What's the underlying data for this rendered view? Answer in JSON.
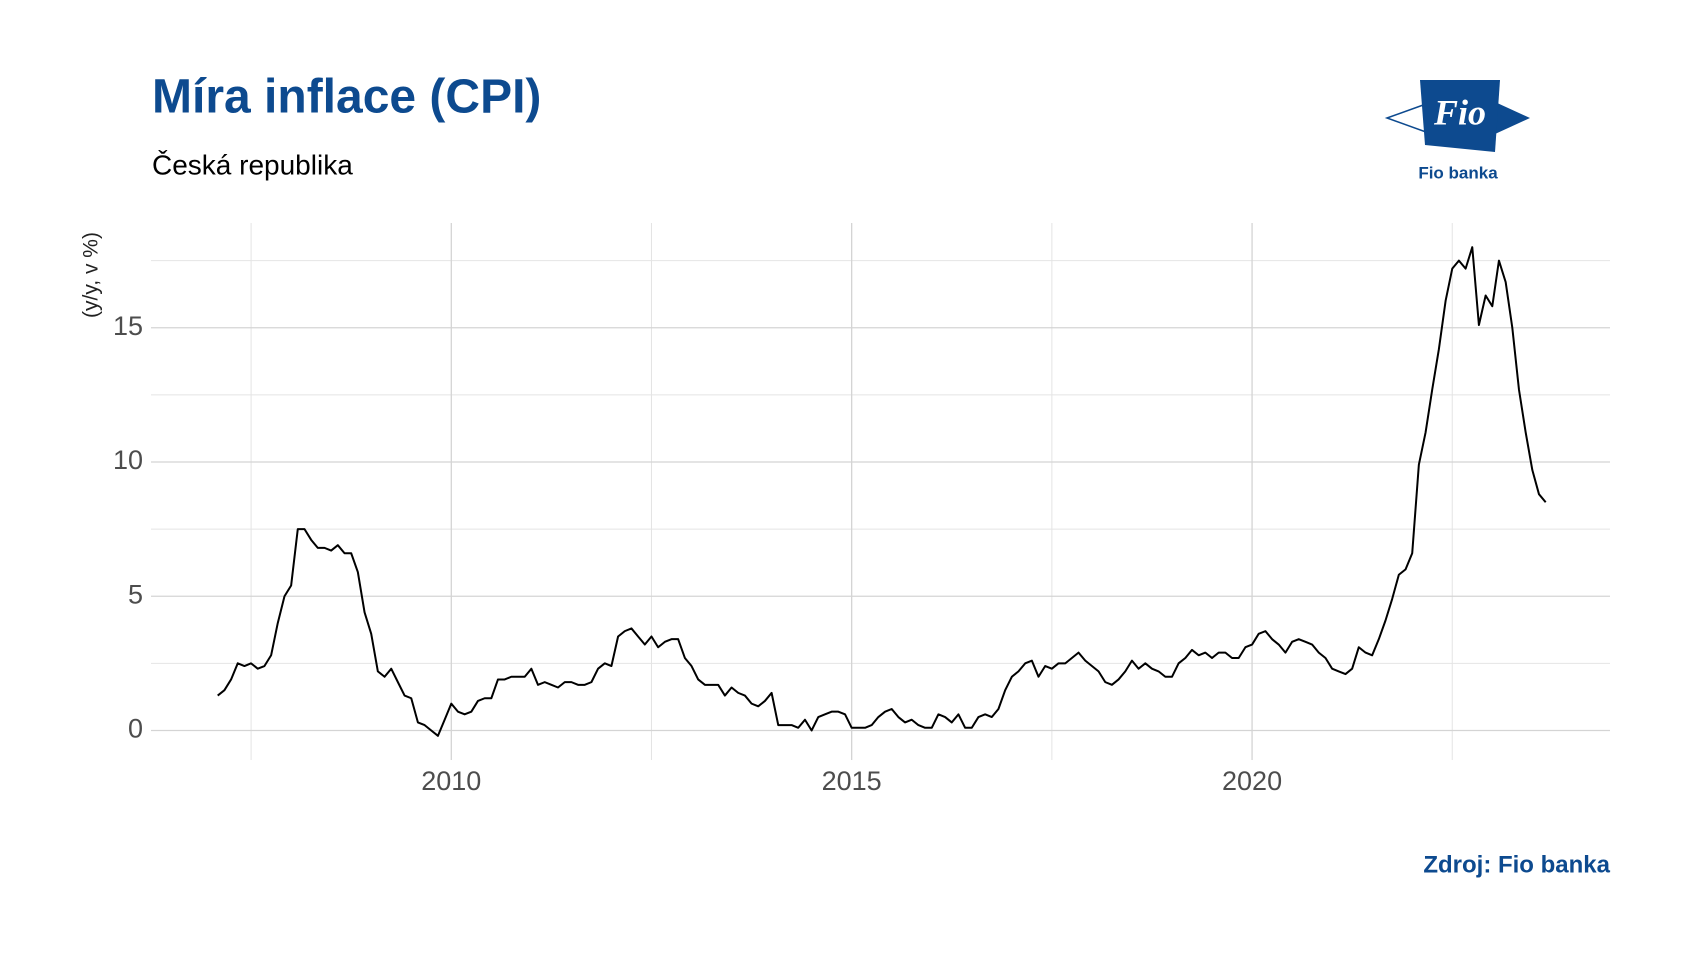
{
  "chart_data": {
    "type": "line",
    "title": "Míra inflace (CPI)",
    "subtitle": "Česká republika",
    "y_label": "(y/y, v %)",
    "source": "Zdroj: Fio banka",
    "logo": {
      "text": "Fio",
      "caption": "Fio banka"
    },
    "xlim": [
      2006.25,
      2024.47
    ],
    "ylim": [
      -1.1,
      18.9
    ],
    "xticks": [
      2010,
      2015,
      2020
    ],
    "yticks": [
      0,
      5,
      10,
      15
    ],
    "xminor": [
      2007.5,
      2012.5,
      2017.5,
      2022.5
    ],
    "yminor": [
      2.5,
      7.5,
      12.5,
      17.5
    ],
    "grid": true,
    "series": [
      {
        "color": "#000000",
        "x": [
          2007.083,
          2007.167,
          2007.25,
          2007.333,
          2007.417,
          2007.5,
          2007.583,
          2007.667,
          2007.75,
          2007.833,
          2007.917,
          2008.0,
          2008.083,
          2008.167,
          2008.25,
          2008.333,
          2008.417,
          2008.5,
          2008.583,
          2008.667,
          2008.75,
          2008.833,
          2008.917,
          2009.0,
          2009.083,
          2009.167,
          2009.25,
          2009.333,
          2009.417,
          2009.5,
          2009.583,
          2009.667,
          2009.75,
          2009.833,
          2009.917,
          2010.0,
          2010.083,
          2010.167,
          2010.25,
          2010.333,
          2010.417,
          2010.5,
          2010.583,
          2010.667,
          2010.75,
          2010.833,
          2010.917,
          2011.0,
          2011.083,
          2011.167,
          2011.25,
          2011.333,
          2011.417,
          2011.5,
          2011.583,
          2011.667,
          2011.75,
          2011.833,
          2011.917,
          2012.0,
          2012.083,
          2012.167,
          2012.25,
          2012.333,
          2012.417,
          2012.5,
          2012.583,
          2012.667,
          2012.75,
          2012.833,
          2012.917,
          2013.0,
          2013.083,
          2013.167,
          2013.25,
          2013.333,
          2013.417,
          2013.5,
          2013.583,
          2013.667,
          2013.75,
          2013.833,
          2013.917,
          2014.0,
          2014.083,
          2014.167,
          2014.25,
          2014.333,
          2014.417,
          2014.5,
          2014.583,
          2014.667,
          2014.75,
          2014.833,
          2014.917,
          2015.0,
          2015.083,
          2015.167,
          2015.25,
          2015.333,
          2015.417,
          2015.5,
          2015.583,
          2015.667,
          2015.75,
          2015.833,
          2015.917,
          2016.0,
          2016.083,
          2016.167,
          2016.25,
          2016.333,
          2016.417,
          2016.5,
          2016.583,
          2016.667,
          2016.75,
          2016.833,
          2016.917,
          2017.0,
          2017.083,
          2017.167,
          2017.25,
          2017.333,
          2017.417,
          2017.5,
          2017.583,
          2017.667,
          2017.75,
          2017.833,
          2017.917,
          2018.0,
          2018.083,
          2018.167,
          2018.25,
          2018.333,
          2018.417,
          2018.5,
          2018.583,
          2018.667,
          2018.75,
          2018.833,
          2018.917,
          2019.0,
          2019.083,
          2019.167,
          2019.25,
          2019.333,
          2019.417,
          2019.5,
          2019.583,
          2019.667,
          2019.75,
          2019.833,
          2019.917,
          2020.0,
          2020.083,
          2020.167,
          2020.25,
          2020.333,
          2020.417,
          2020.5,
          2020.583,
          2020.667,
          2020.75,
          2020.833,
          2020.917,
          2021.0,
          2021.083,
          2021.167,
          2021.25,
          2021.333,
          2021.417,
          2021.5,
          2021.583,
          2021.667,
          2021.75,
          2021.833,
          2021.917,
          2022.0,
          2022.083,
          2022.167,
          2022.25,
          2022.333,
          2022.417,
          2022.5,
          2022.583,
          2022.667,
          2022.75,
          2022.833,
          2022.917,
          2023.0,
          2023.083,
          2023.167,
          2023.25,
          2023.333,
          2023.417,
          2023.5,
          2023.583,
          2023.667
        ],
        "values": [
          1.3,
          1.5,
          1.9,
          2.5,
          2.4,
          2.5,
          2.3,
          2.4,
          2.8,
          4.0,
          5.0,
          5.4,
          7.5,
          7.5,
          7.1,
          6.8,
          6.8,
          6.7,
          6.9,
          6.6,
          6.6,
          5.9,
          4.4,
          3.6,
          2.2,
          2.0,
          2.3,
          1.8,
          1.3,
          1.2,
          0.3,
          0.2,
          0.0,
          -0.2,
          0.4,
          1.0,
          0.7,
          0.6,
          0.7,
          1.1,
          1.2,
          1.2,
          1.9,
          1.9,
          2.0,
          2.0,
          2.0,
          2.3,
          1.7,
          1.8,
          1.7,
          1.6,
          1.8,
          1.8,
          1.7,
          1.7,
          1.8,
          2.3,
          2.5,
          2.4,
          3.5,
          3.7,
          3.8,
          3.5,
          3.2,
          3.5,
          3.1,
          3.3,
          3.4,
          3.4,
          2.7,
          2.4,
          1.9,
          1.7,
          1.7,
          1.7,
          1.3,
          1.6,
          1.4,
          1.3,
          1.0,
          0.9,
          1.1,
          1.4,
          0.2,
          0.2,
          0.2,
          0.1,
          0.4,
          0.0,
          0.5,
          0.6,
          0.7,
          0.7,
          0.6,
          0.1,
          0.1,
          0.1,
          0.2,
          0.5,
          0.7,
          0.8,
          0.5,
          0.3,
          0.4,
          0.2,
          0.1,
          0.1,
          0.6,
          0.5,
          0.3,
          0.6,
          0.1,
          0.1,
          0.5,
          0.6,
          0.5,
          0.8,
          1.5,
          2.0,
          2.2,
          2.5,
          2.6,
          2.0,
          2.4,
          2.3,
          2.5,
          2.5,
          2.7,
          2.9,
          2.6,
          2.4,
          2.2,
          1.8,
          1.7,
          1.9,
          2.2,
          2.6,
          2.3,
          2.5,
          2.3,
          2.2,
          2.0,
          2.0,
          2.5,
          2.7,
          3.0,
          2.8,
          2.9,
          2.7,
          2.9,
          2.9,
          2.7,
          2.7,
          3.1,
          3.2,
          3.6,
          3.7,
          3.4,
          3.2,
          2.9,
          3.3,
          3.4,
          3.3,
          3.2,
          2.9,
          2.7,
          2.3,
          2.2,
          2.1,
          2.3,
          3.1,
          2.9,
          2.8,
          3.4,
          4.1,
          4.9,
          5.8,
          6.0,
          6.6,
          9.9,
          11.1,
          12.7,
          14.2,
          16.0,
          17.2,
          17.5,
          17.2,
          18.0,
          15.1,
          16.2,
          15.8,
          17.5,
          16.7,
          15.0,
          12.7,
          11.1,
          9.7,
          8.8,
          8.5
        ]
      }
    ]
  }
}
